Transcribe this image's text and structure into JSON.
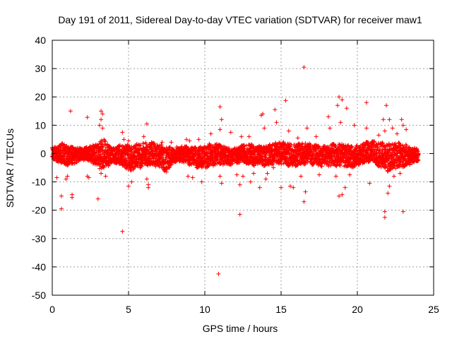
{
  "chart_data": {
    "type": "scatter",
    "title": "Day 191 of 2011, Sidereal Day-to-day VTEC variation (SDTVAR) for receiver maw1",
    "xlabel": "GPS time / hours",
    "ylabel": "SDTVAR / TECUs",
    "xlim": [
      0,
      25
    ],
    "ylim": [
      -50,
      40
    ],
    "xticks": [
      0,
      5,
      10,
      15,
      20,
      25
    ],
    "yticks": [
      -50,
      -40,
      -30,
      -20,
      -10,
      0,
      10,
      20,
      30,
      40
    ],
    "grid": true,
    "marker": "+",
    "series": [
      {
        "name": "SDTVAR",
        "color": "#ff0000",
        "band": {
          "x_start": 0.0,
          "x_end": 24.0,
          "envelope_x": [
            0.0,
            0.5,
            1.0,
            2.0,
            3.0,
            3.3,
            4.0,
            5.0,
            6.0,
            7.0,
            7.5,
            8.0,
            9.0,
            10.0,
            11.0,
            12.0,
            13.0,
            14.0,
            15.0,
            16.0,
            17.0,
            18.0,
            19.0,
            20.0,
            21.0,
            22.0,
            23.0,
            24.0
          ],
          "upper": [
            2,
            3,
            3,
            2,
            3,
            6,
            2,
            3,
            4,
            3,
            3,
            2,
            2,
            3,
            3,
            2,
            3,
            3,
            4,
            4,
            3,
            3,
            3,
            3,
            4,
            4,
            3,
            2
          ],
          "lower": [
            -2,
            -4,
            -4,
            -2,
            -5,
            -5,
            -3,
            -6,
            -4,
            -5,
            -6,
            -3,
            -4,
            -5,
            -4,
            -3,
            -4,
            -4,
            -4,
            -4,
            -4,
            -4,
            -5,
            -4,
            -3,
            -6,
            -5,
            -2
          ]
        },
        "outliers": [
          {
            "x": 0.6,
            "y": -19.5
          },
          {
            "x": 0.6,
            "y": -15
          },
          {
            "x": 0.9,
            "y": -9
          },
          {
            "x": 1.0,
            "y": -8
          },
          {
            "x": 1.2,
            "y": 15
          },
          {
            "x": 1.3,
            "y": -14.5
          },
          {
            "x": 1.3,
            "y": -15.5
          },
          {
            "x": 0.3,
            "y": -8.5
          },
          {
            "x": 2.3,
            "y": 12.8
          },
          {
            "x": 2.3,
            "y": -8
          },
          {
            "x": 2.4,
            "y": -8.5
          },
          {
            "x": 3.0,
            "y": -16
          },
          {
            "x": 3.2,
            "y": 15
          },
          {
            "x": 3.3,
            "y": 14
          },
          {
            "x": 3.2,
            "y": 12
          },
          {
            "x": 3.1,
            "y": 10
          },
          {
            "x": 3.3,
            "y": 9
          },
          {
            "x": 3.2,
            "y": -7
          },
          {
            "x": 3.5,
            "y": -8
          },
          {
            "x": 4.6,
            "y": -27.5
          },
          {
            "x": 4.6,
            "y": 7.5
          },
          {
            "x": 4.7,
            "y": 5
          },
          {
            "x": 5.0,
            "y": 4.5
          },
          {
            "x": 5.0,
            "y": -11.5
          },
          {
            "x": 5.2,
            "y": -10
          },
          {
            "x": 6.2,
            "y": 10.5
          },
          {
            "x": 6.0,
            "y": 6
          },
          {
            "x": 6.2,
            "y": -9
          },
          {
            "x": 6.3,
            "y": -11
          },
          {
            "x": 6.3,
            "y": -12
          },
          {
            "x": 7.2,
            "y": 4
          },
          {
            "x": 7.8,
            "y": 4
          },
          {
            "x": 8.5,
            "y": 2.5
          },
          {
            "x": 8.8,
            "y": 5
          },
          {
            "x": 9.0,
            "y": 4.5
          },
          {
            "x": 8.9,
            "y": -8
          },
          {
            "x": 9.2,
            "y": -8.5
          },
          {
            "x": 9.6,
            "y": 5
          },
          {
            "x": 9.8,
            "y": -10
          },
          {
            "x": 10.4,
            "y": 7
          },
          {
            "x": 10.9,
            "y": -42.5
          },
          {
            "x": 11.0,
            "y": 16.5
          },
          {
            "x": 11.1,
            "y": 12
          },
          {
            "x": 11.0,
            "y": 8.5
          },
          {
            "x": 11.1,
            "y": -10.5
          },
          {
            "x": 11.0,
            "y": -8
          },
          {
            "x": 11.7,
            "y": 7.5
          },
          {
            "x": 12.1,
            "y": -7.5
          },
          {
            "x": 12.3,
            "y": -21.5
          },
          {
            "x": 12.3,
            "y": -11
          },
          {
            "x": 12.4,
            "y": 6
          },
          {
            "x": 12.5,
            "y": -8
          },
          {
            "x": 12.9,
            "y": 6
          },
          {
            "x": 13.0,
            "y": -10
          },
          {
            "x": 13.2,
            "y": -7
          },
          {
            "x": 13.6,
            "y": -12
          },
          {
            "x": 13.7,
            "y": 13.5
          },
          {
            "x": 13.8,
            "y": 14
          },
          {
            "x": 13.9,
            "y": 9
          },
          {
            "x": 14.0,
            "y": -9
          },
          {
            "x": 14.1,
            "y": -7
          },
          {
            "x": 14.6,
            "y": 15.5
          },
          {
            "x": 14.7,
            "y": 11
          },
          {
            "x": 14.5,
            "y": -5
          },
          {
            "x": 15.0,
            "y": -12
          },
          {
            "x": 15.3,
            "y": 18.7
          },
          {
            "x": 15.5,
            "y": 8
          },
          {
            "x": 15.6,
            "y": -11.5
          },
          {
            "x": 15.8,
            "y": -12
          },
          {
            "x": 16.1,
            "y": 5.5
          },
          {
            "x": 16.3,
            "y": -8
          },
          {
            "x": 16.5,
            "y": 30.5
          },
          {
            "x": 16.5,
            "y": -17
          },
          {
            "x": 16.6,
            "y": -13.5
          },
          {
            "x": 16.7,
            "y": 9
          },
          {
            "x": 17.3,
            "y": 6
          },
          {
            "x": 17.5,
            "y": -7.5
          },
          {
            "x": 18.1,
            "y": 13
          },
          {
            "x": 18.2,
            "y": 9
          },
          {
            "x": 18.6,
            "y": -8
          },
          {
            "x": 18.8,
            "y": 20
          },
          {
            "x": 18.7,
            "y": 17
          },
          {
            "x": 19.0,
            "y": 19
          },
          {
            "x": 18.9,
            "y": 11
          },
          {
            "x": 19.0,
            "y": -14.5
          },
          {
            "x": 18.8,
            "y": -15
          },
          {
            "x": 19.2,
            "y": -12
          },
          {
            "x": 19.3,
            "y": 16
          },
          {
            "x": 19.5,
            "y": -7.5
          },
          {
            "x": 19.8,
            "y": 10
          },
          {
            "x": 20.6,
            "y": 18
          },
          {
            "x": 20.6,
            "y": 9
          },
          {
            "x": 20.8,
            "y": -10.5
          },
          {
            "x": 21.4,
            "y": 6.5
          },
          {
            "x": 21.7,
            "y": 12
          },
          {
            "x": 21.8,
            "y": 8
          },
          {
            "x": 21.8,
            "y": -20.5
          },
          {
            "x": 21.8,
            "y": -22.5
          },
          {
            "x": 21.9,
            "y": 17
          },
          {
            "x": 22.1,
            "y": 12
          },
          {
            "x": 22.0,
            "y": -14
          },
          {
            "x": 22.1,
            "y": -11.5
          },
          {
            "x": 22.3,
            "y": 9
          },
          {
            "x": 22.4,
            "y": -8
          },
          {
            "x": 22.6,
            "y": 7
          },
          {
            "x": 22.8,
            "y": -7
          },
          {
            "x": 22.9,
            "y": 12
          },
          {
            "x": 23.0,
            "y": -20.5
          },
          {
            "x": 23.2,
            "y": 8.5
          },
          {
            "x": 23.0,
            "y": 10
          }
        ]
      }
    ]
  }
}
